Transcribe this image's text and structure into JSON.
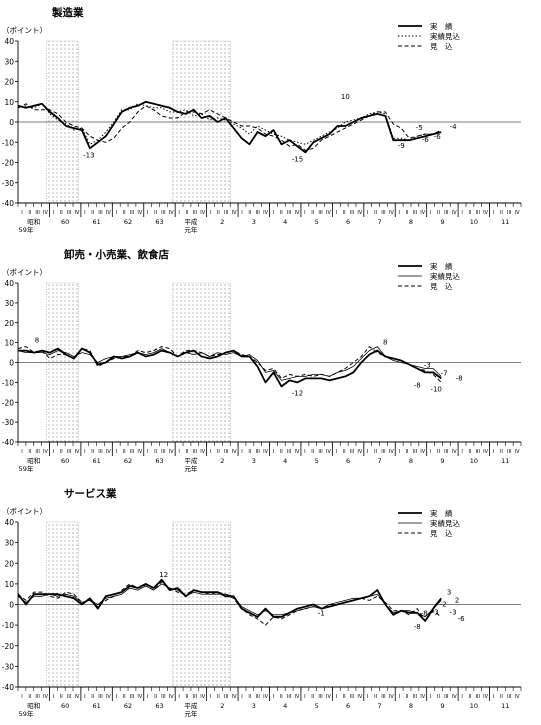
{
  "chart_data": [
    {
      "type": "line",
      "title": "製造業",
      "ylabel": "（ポイント）",
      "ylim": [
        -40,
        40
      ],
      "yticks": [
        40,
        30,
        20,
        10,
        0,
        -10,
        -20,
        -30,
        -40
      ],
      "shaded_periods": [
        [
          0.9,
          1.9
        ],
        [
          4.85,
          6.65
        ]
      ],
      "year_labels": [
        "昭和",
        "60",
        "61",
        "62",
        "63",
        "平成",
        "2",
        "3",
        "4",
        "5",
        "6",
        "7",
        "8",
        "9",
        "10",
        "11"
      ],
      "era_sublabels": [
        "59年",
        "元年"
      ],
      "quarter_ticks": [
        "I",
        "II",
        "III",
        "IV"
      ],
      "legend": [
        "実　績",
        "実績見込",
        "見　込"
      ],
      "annotations": [
        "10",
        "-13",
        "-15",
        "-9",
        "-6",
        "-5",
        "-6",
        "-4"
      ],
      "series": [
        {
          "name": "実　績",
          "style": "solid-thick",
          "x0": 0,
          "values": [
            8,
            7,
            8,
            9,
            5,
            2,
            -2,
            -3,
            -4,
            -13,
            -10,
            -7,
            -1,
            5,
            7,
            8,
            10,
            9,
            8,
            7,
            5,
            4,
            6,
            2,
            3,
            0,
            2,
            -3,
            -8,
            -11,
            -5,
            -7,
            -4,
            -11,
            -9,
            -12,
            -15,
            -10,
            -8,
            -6,
            -2,
            -2,
            0,
            2,
            3,
            4,
            3,
            -9,
            -9,
            -9,
            -8,
            -7,
            -6,
            -5
          ]
        },
        {
          "name": "実績見込",
          "style": "dotted",
          "x0": 0,
          "values": [
            7,
            8,
            7,
            9,
            4,
            1,
            -1,
            -4,
            -3,
            -11,
            -9,
            -5,
            0,
            6,
            6,
            9,
            8,
            7,
            7,
            5,
            5,
            6,
            3,
            4,
            1,
            2,
            1,
            -1,
            -3,
            -6,
            -2,
            -4,
            -6,
            -7,
            -9,
            -10,
            -11,
            -9,
            -7,
            -5,
            -3,
            0,
            1,
            2,
            4,
            5,
            4,
            -8,
            -8,
            -9,
            -7,
            -6,
            -6,
            -5
          ]
        },
        {
          "name": "見　込",
          "style": "dashed",
          "x0": 0,
          "values": [
            7,
            9,
            6,
            6,
            6,
            4,
            0,
            -2,
            -3,
            -7,
            -9,
            -10,
            -8,
            -3,
            0,
            5,
            8,
            6,
            3,
            2,
            2,
            5,
            5,
            4,
            6,
            4,
            2,
            0,
            -2,
            -2,
            -3,
            -6,
            -7,
            -9,
            -12,
            -11,
            -14,
            -13,
            -9,
            -7,
            -5,
            -3,
            -1,
            1,
            3,
            5,
            5,
            -1,
            -3,
            -8,
            -7,
            -6,
            -6,
            -4
          ]
        }
      ]
    },
    {
      "type": "line",
      "title": "卸売・小売業、飲食店",
      "ylabel": "（ポイント）",
      "ylim": [
        -40,
        40
      ],
      "yticks": [
        40,
        30,
        20,
        10,
        0,
        -10,
        -20,
        -30,
        -40
      ],
      "shaded_periods": [
        [
          0.9,
          1.9
        ],
        [
          4.85,
          6.65
        ]
      ],
      "year_labels": [
        "昭和",
        "60",
        "61",
        "62",
        "63",
        "平成",
        "2",
        "3",
        "4",
        "5",
        "6",
        "7",
        "8",
        "9",
        "10",
        "11"
      ],
      "era_sublabels": [
        "59年",
        "元年"
      ],
      "quarter_ticks": [
        "I",
        "II",
        "III",
        "IV"
      ],
      "legend": [
        "実　績",
        "実績見込",
        "見　込"
      ],
      "annotations": [
        "8",
        "-12",
        "8",
        "-3",
        "-8",
        "-7",
        "-10",
        "-8"
      ],
      "series": [
        {
          "name": "実　績",
          "style": "solid-thick",
          "x0": 0,
          "values": [
            6,
            6,
            5,
            6,
            5,
            7,
            4,
            2,
            7,
            5,
            -1,
            0,
            3,
            2,
            3,
            5,
            3,
            4,
            6,
            5,
            3,
            5,
            6,
            3,
            2,
            3,
            5,
            6,
            3,
            3,
            -2,
            -10,
            -5,
            -12,
            -9,
            -10,
            -8,
            -8,
            -8,
            -9,
            -8,
            -7,
            -5,
            0,
            4,
            6,
            3,
            2,
            1,
            -1,
            -3,
            -5,
            -5,
            -8
          ]
        },
        {
          "name": "実績見込",
          "style": "thin",
          "x0": 0,
          "values": [
            6,
            5,
            5,
            5,
            4,
            6,
            5,
            3,
            5,
            4,
            0,
            2,
            3,
            3,
            4,
            5,
            4,
            5,
            7,
            5,
            3,
            5,
            4,
            5,
            3,
            5,
            4,
            5,
            3,
            4,
            1,
            -5,
            -4,
            -9,
            -8,
            -7,
            -7,
            -6,
            -6,
            -7,
            -5,
            -4,
            -2,
            2,
            6,
            8,
            3,
            1,
            0,
            -1,
            -2,
            -3,
            -3,
            -7
          ]
        },
        {
          "name": "見　込",
          "style": "dashed",
          "x0": 0,
          "values": [
            7,
            8,
            5,
            6,
            2,
            4,
            4,
            2,
            7,
            6,
            -2,
            0,
            2,
            3,
            3,
            6,
            5,
            6,
            8,
            7,
            3,
            6,
            6,
            5,
            3,
            4,
            5,
            6,
            4,
            3,
            0,
            -4,
            -3,
            -8,
            -6,
            -7,
            -6,
            -7,
            -6,
            -7,
            -5,
            -3,
            0,
            3,
            8,
            5,
            3,
            2,
            1,
            -1,
            -3,
            -4,
            -6,
            -10
          ]
        }
      ]
    },
    {
      "type": "line",
      "title": "サービス業",
      "ylabel": "（ポイント）",
      "ylim": [
        -40,
        40
      ],
      "yticks": [
        40,
        30,
        20,
        10,
        0,
        -10,
        -20,
        -30,
        -40
      ],
      "shaded_periods": [
        [
          0.9,
          1.9
        ],
        [
          4.85,
          6.65
        ]
      ],
      "year_labels": [
        "昭和",
        "60",
        "61",
        "62",
        "63",
        "平成",
        "2",
        "3",
        "4",
        "5",
        "6",
        "7",
        "8",
        "9",
        "10",
        "11"
      ],
      "era_sublabels": [
        "59年",
        "元年"
      ],
      "quarter_ticks": [
        "I",
        "II",
        "III",
        "IV"
      ],
      "legend": [
        "実　績",
        "実績見込",
        "見　込"
      ],
      "annotations": [
        "12",
        "-8",
        "-3",
        "-1",
        "-8",
        "-2",
        "-3",
        "3",
        "2",
        "-6"
      ],
      "series": [
        {
          "name": "実　績",
          "style": "solid-thick",
          "x0": 0,
          "values": [
            5,
            0,
            5,
            5,
            5,
            5,
            4,
            3,
            0,
            3,
            -2,
            4,
            5,
            6,
            9,
            8,
            10,
            8,
            12,
            7,
            8,
            4,
            7,
            6,
            6,
            6,
            4,
            4,
            -2,
            -4,
            -6,
            -2,
            -6,
            -6,
            -4,
            -2,
            -1,
            0,
            -2,
            -1,
            0,
            1,
            2,
            3,
            4,
            7,
            0,
            -5,
            -3,
            -4,
            -4,
            -8,
            -2,
            3
          ]
        },
        {
          "name": "実績見込",
          "style": "thin",
          "x0": 0,
          "values": [
            4,
            1,
            4,
            4,
            5,
            4,
            5,
            4,
            1,
            2,
            0,
            3,
            4,
            5,
            8,
            7,
            9,
            7,
            10,
            8,
            7,
            4,
            6,
            5,
            5,
            5,
            5,
            4,
            -1,
            -3,
            -5,
            -3,
            -5,
            -5,
            -4,
            -3,
            -2,
            -1,
            -2,
            0,
            1,
            2,
            3,
            3,
            4,
            5,
            0,
            -4,
            -3,
            -3,
            -4,
            -6,
            -2,
            2
          ]
        },
        {
          "name": "見　込",
          "style": "dashed",
          "x0": 0,
          "values": [
            5,
            2,
            6,
            6,
            4,
            3,
            6,
            5,
            1,
            2,
            -1,
            2,
            4,
            7,
            10,
            8,
            9,
            7,
            11,
            8,
            6,
            5,
            7,
            6,
            5,
            6,
            5,
            3,
            -2,
            -5,
            -7,
            -10,
            -6,
            -7,
            -5,
            -3,
            -2,
            -1,
            -2,
            0,
            0,
            1,
            2,
            3,
            2,
            4,
            1,
            -3,
            -3,
            -5,
            -2,
            -8,
            -3,
            -6
          ]
        }
      ]
    }
  ]
}
